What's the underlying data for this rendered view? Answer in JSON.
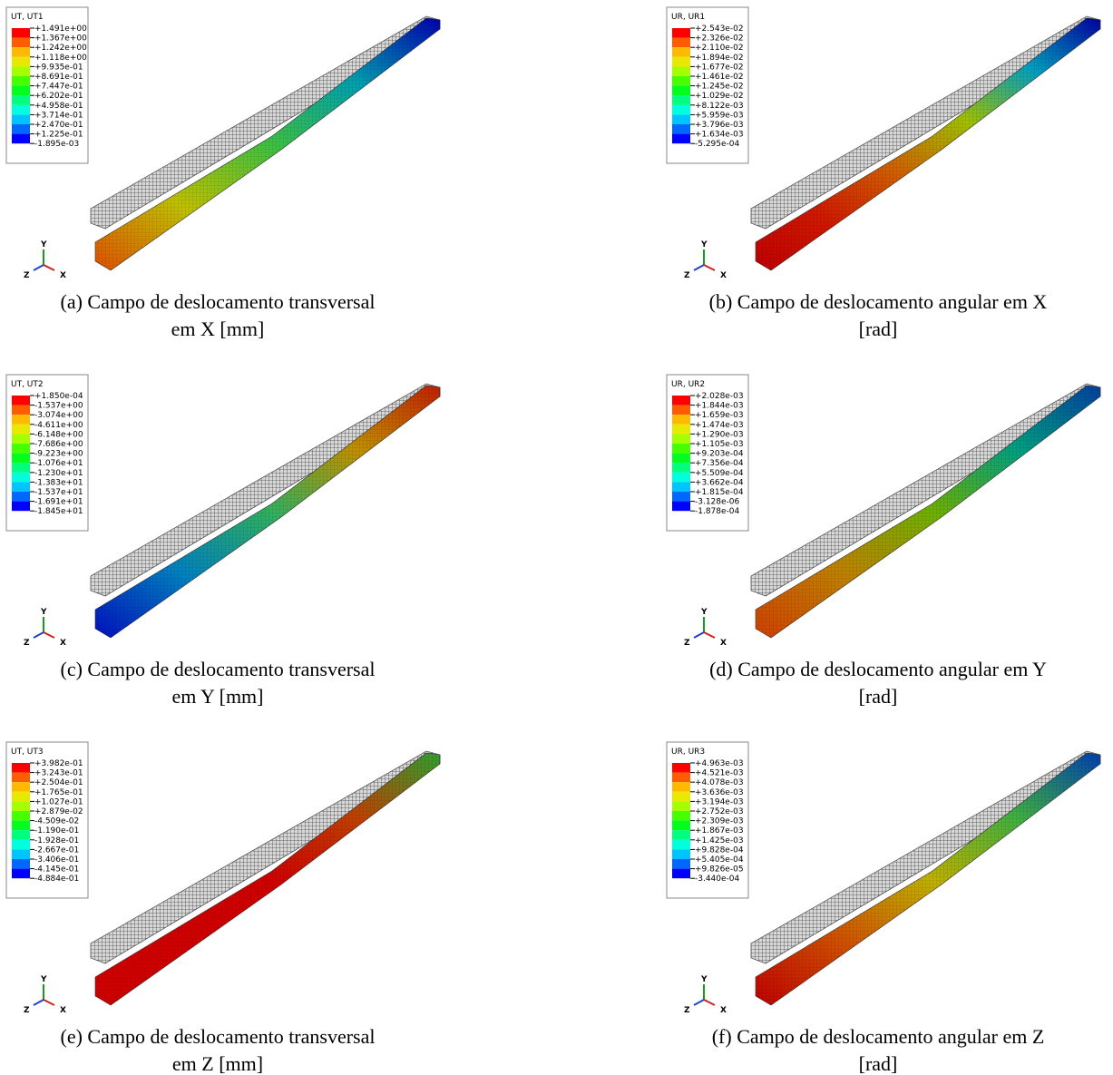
{
  "panels": [
    {
      "legend": {
        "title": "UT, UT1",
        "labels": [
          "+1.491e+00",
          "+1.367e+00",
          "+1.242e+00",
          "+1.118e+00",
          "+9.935e-01",
          "+8.691e-01",
          "+7.447e-01",
          "+6.202e-01",
          "+4.958e-01",
          "+3.714e-01",
          "+2.470e-01",
          "+1.225e-01",
          "-1.895e-03"
        ]
      },
      "triad": {
        "y": "Y",
        "z": "Z",
        "x": "X"
      },
      "caption": [
        "(a) Campo de deslocamento transversal",
        "em X [mm]"
      ]
    },
    {
      "legend": {
        "title": "UR, UR1",
        "labels": [
          "+2.543e-02",
          "+2.326e-02",
          "+2.110e-02",
          "+1.894e-02",
          "+1.677e-02",
          "+1.461e-02",
          "+1.245e-02",
          "+1.029e-02",
          "+8.122e-03",
          "+5.959e-03",
          "+3.796e-03",
          "+1.634e-03",
          "-5.295e-04"
        ]
      },
      "triad": {
        "y": "Y",
        "z": "Z",
        "x": "X"
      },
      "caption": [
        "(b) Campo de deslocamento angular em X",
        "[rad]"
      ]
    },
    {
      "legend": {
        "title": "UT, UT2",
        "labels": [
          "+1.850e-04",
          "-1.537e+00",
          "-3.074e+00",
          "-4.611e+00",
          "-6.148e+00",
          "-7.686e+00",
          "-9.223e+00",
          "-1.076e+01",
          "-1.230e+01",
          "-1.383e+01",
          "-1.537e+01",
          "-1.691e+01",
          "-1.845e+01"
        ]
      },
      "triad": {
        "y": "Y",
        "z": "Z",
        "x": "X"
      },
      "caption": [
        "(c) Campo de deslocamento transversal",
        "em Y [mm]"
      ]
    },
    {
      "legend": {
        "title": "UR, UR2",
        "labels": [
          "+2.028e-03",
          "+1.844e-03",
          "+1.659e-03",
          "+1.474e-03",
          "+1.290e-03",
          "+1.105e-03",
          "+9.203e-04",
          "+7.356e-04",
          "+5.509e-04",
          "+3.662e-04",
          "+1.815e-04",
          "-3.128e-06",
          "-1.878e-04"
        ]
      },
      "triad": {
        "y": "Y",
        "z": "Z",
        "x": "X"
      },
      "caption": [
        "(d) Campo de deslocamento angular em Y",
        "[rad]"
      ]
    },
    {
      "legend": {
        "title": "UT, UT3",
        "labels": [
          "+3.982e-01",
          "+3.243e-01",
          "+2.504e-01",
          "+1.765e-01",
          "+1.027e-01",
          "+2.879e-02",
          "-4.509e-02",
          "-1.190e-01",
          "-1.928e-01",
          "-2.667e-01",
          "-3.406e-01",
          "-4.145e-01",
          "-4.884e-01"
        ]
      },
      "triad": {
        "y": "Y",
        "z": "Z",
        "x": "X"
      },
      "caption": [
        "(e) Campo de deslocamento transversal",
        "em Z [mm]"
      ]
    },
    {
      "legend": {
        "title": "UR, UR3",
        "labels": [
          "+4.963e-03",
          "+4.521e-03",
          "+4.078e-03",
          "+3.636e-03",
          "+3.194e-03",
          "+2.752e-03",
          "+2.309e-03",
          "+1.867e-03",
          "+1.425e-03",
          "+9.828e-04",
          "+5.405e-04",
          "+9.826e-05",
          "-3.440e-04"
        ]
      },
      "triad": {
        "y": "Y",
        "z": "Z",
        "x": "X"
      },
      "caption": [
        "(f) Campo de deslocamento angular em Z",
        "[rad]"
      ]
    }
  ]
}
